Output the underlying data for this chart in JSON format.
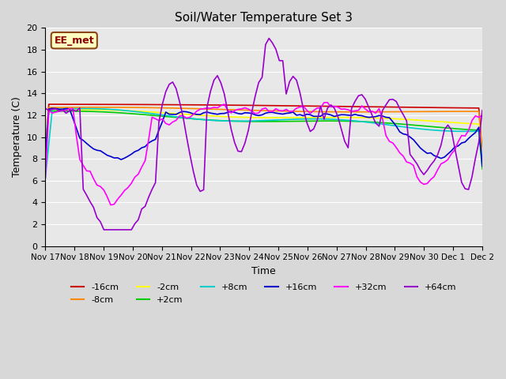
{
  "title": "Soil/Water Temperature Set 3",
  "xlabel": "Time",
  "ylabel": "Temperature (C)",
  "ylim": [
    0,
    20
  ],
  "yticks": [
    0,
    2,
    4,
    6,
    8,
    10,
    12,
    14,
    16,
    18,
    20
  ],
  "x_labels": [
    "Nov 17",
    "Nov 18",
    "Nov 19",
    "Nov 20",
    "Nov 21",
    "Nov 22",
    "Nov 23",
    "Nov 24",
    "Nov 25",
    "Nov 26",
    "Nov 27",
    "Nov 28",
    "Nov 29",
    "Nov 30",
    "Dec 1",
    "Dec 2"
  ],
  "annotation": "EE_met",
  "fig_bg_color": "#d8d8d8",
  "ax_bg_color": "#e8e8e8",
  "series_colors": {
    "-16cm": "#cc0000",
    "-8cm": "#ff8800",
    "-2cm": "#ffff00",
    "+2cm": "#00cc00",
    "+8cm": "#00cccc",
    "+16cm": "#0000cc",
    "+32cm": "#ff00ff",
    "+64cm": "#9900cc"
  }
}
